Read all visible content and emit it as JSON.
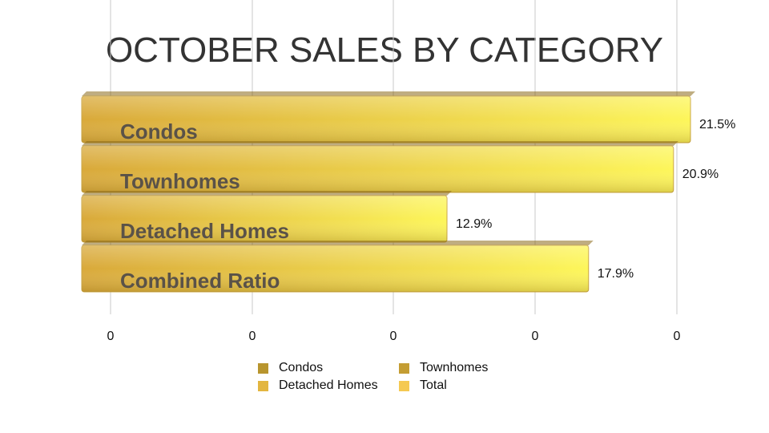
{
  "chart_data": {
    "type": "bar",
    "orientation": "horizontal",
    "title": "OCTOBER SALES BY CATEGORY",
    "categories": [
      "Condos",
      "Townhomes",
      "Detached Homes",
      "Combined Ratio"
    ],
    "values": [
      21.5,
      20.9,
      12.9,
      17.9
    ],
    "value_labels": [
      "21.5%",
      "20.9%",
      "12.9%",
      "17.9%"
    ],
    "x_tick_labels": [
      "0",
      "0",
      "0",
      "0",
      "0"
    ],
    "grid": true,
    "legend": {
      "placement": "bottom",
      "entries": [
        {
          "name": "Condos",
          "color": "#b8952e"
        },
        {
          "name": "Townhomes",
          "color": "#c49d33"
        },
        {
          "name": "Detached Homes",
          "color": "#e3b640"
        },
        {
          "name": "Total",
          "color": "#f5c952"
        }
      ]
    },
    "bar_color_start": "#d9a93a",
    "bar_color_end": "#fdf65a"
  }
}
